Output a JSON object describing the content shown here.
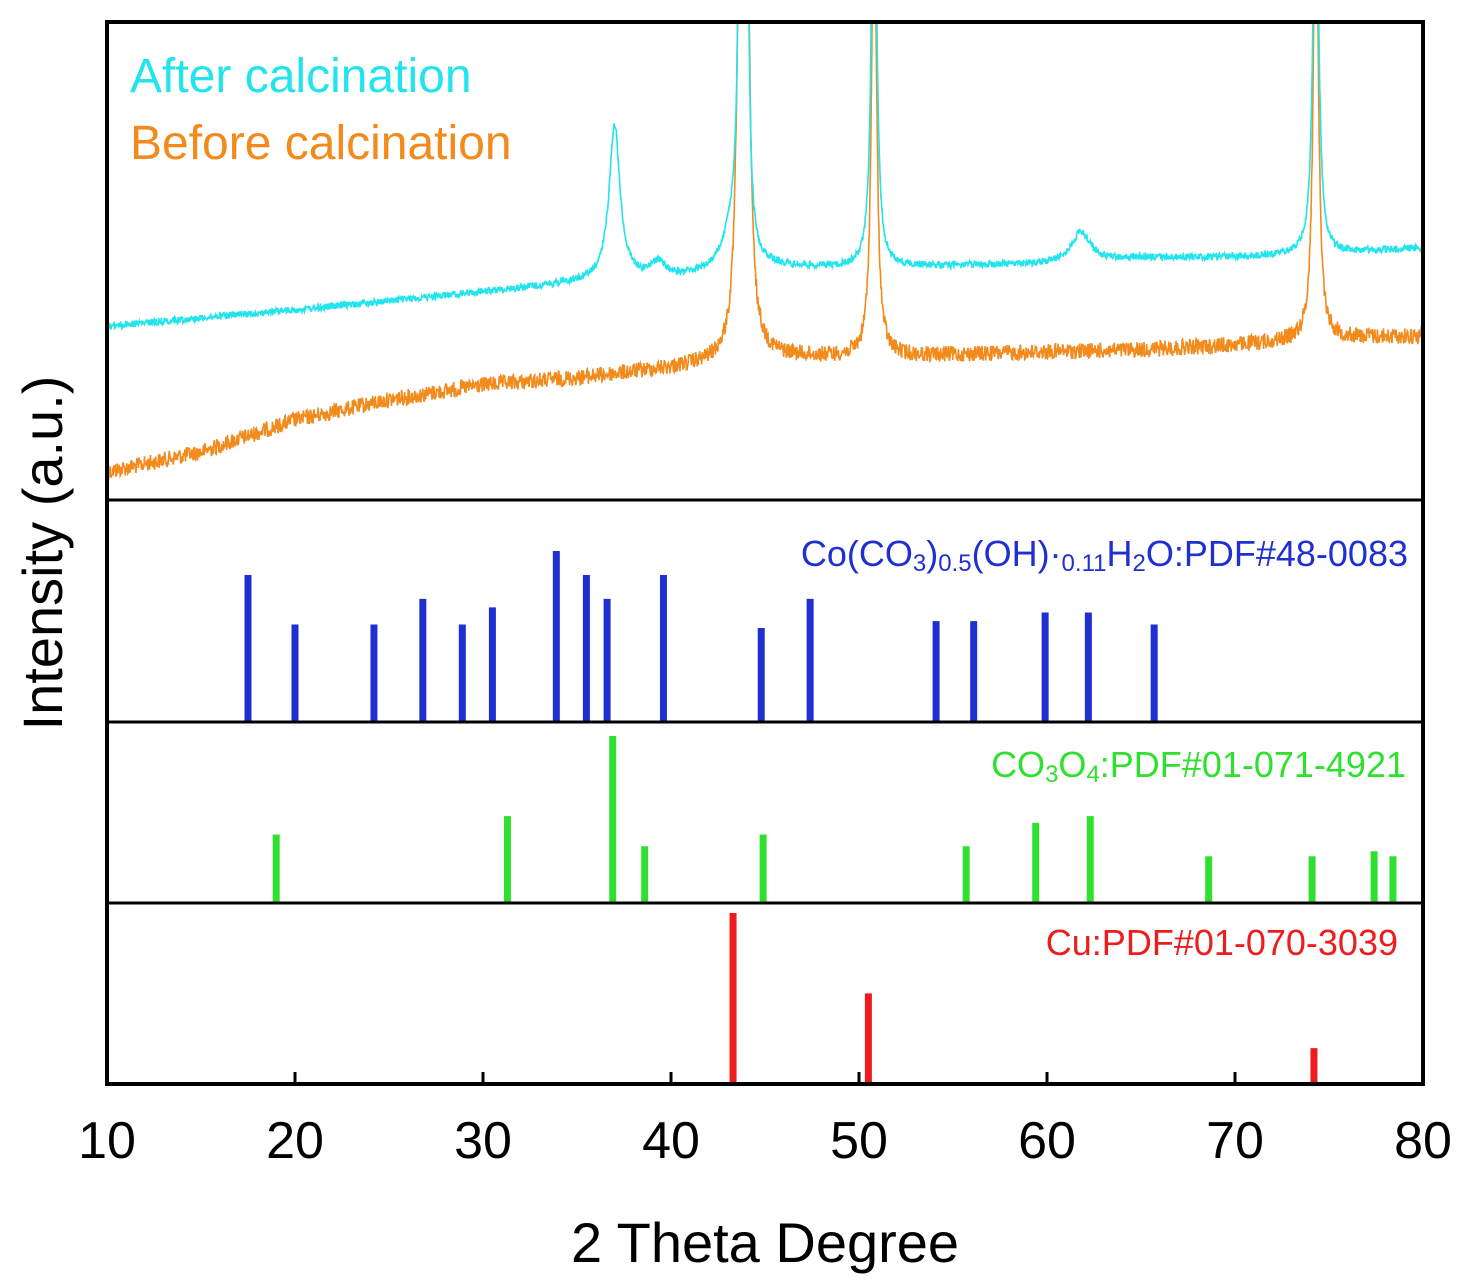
{
  "chart_data": {
    "type": "line",
    "xlabel": "2 Theta Degree",
    "ylabel": "Intensity (a.u.)",
    "xlim": [
      10,
      80
    ],
    "xticks": [
      10,
      20,
      30,
      40,
      50,
      60,
      70,
      80
    ],
    "grid": false,
    "legend": {
      "position": "top-left",
      "entries": [
        {
          "label": "After calcination",
          "color": "#22e4ec"
        },
        {
          "label": "Before calcination",
          "color": "#f28a1c"
        }
      ]
    },
    "series": [
      {
        "name": "After calcination",
        "color": "#22e4ec",
        "baseline": [
          [
            10,
            326
          ],
          [
            15,
            318
          ],
          [
            20,
            310
          ],
          [
            25,
            301
          ],
          [
            30,
            292
          ],
          [
            35,
            283
          ],
          [
            38,
            280
          ],
          [
            40,
            279
          ],
          [
            45,
            268
          ],
          [
            50,
            268
          ],
          [
            55,
            266
          ],
          [
            60,
            264
          ],
          [
            65,
            258
          ],
          [
            70,
            257
          ],
          [
            75,
            254
          ],
          [
            80,
            248
          ]
        ],
        "peaks": [
          {
            "x": 37.0,
            "height": 155,
            "width": 0.35
          },
          {
            "x": 39.3,
            "height": 15,
            "width": 0.5
          },
          {
            "x": 43.3,
            "height": 40,
            "width": 0.6
          },
          {
            "x": 43.7,
            "height": 500,
            "width": 0.12
          },
          {
            "x": 44.0,
            "height": 500,
            "width": 0.12
          },
          {
            "x": 50.8,
            "height": 500,
            "width": 0.15
          },
          {
            "x": 61.8,
            "height": 30,
            "width": 0.6
          },
          {
            "x": 74.3,
            "height": 500,
            "width": 0.15
          }
        ],
        "noise": 7
      },
      {
        "name": "Before calcination",
        "color": "#f28a1c",
        "baseline": [
          [
            10,
            472
          ],
          [
            15,
            452
          ],
          [
            20,
            420
          ],
          [
            25,
            400
          ],
          [
            30,
            385
          ],
          [
            35,
            378
          ],
          [
            40,
            368
          ],
          [
            45,
            357
          ],
          [
            50,
            357
          ],
          [
            55,
            355
          ],
          [
            60,
            352
          ],
          [
            65,
            350
          ],
          [
            70,
            345
          ],
          [
            75,
            338
          ],
          [
            80,
            336
          ]
        ],
        "peaks": [
          {
            "x": 43.7,
            "height": 500,
            "width": 0.18
          },
          {
            "x": 44.0,
            "height": 500,
            "width": 0.18
          },
          {
            "x": 50.8,
            "height": 500,
            "width": 0.15
          },
          {
            "x": 74.3,
            "height": 500,
            "width": 0.15
          }
        ],
        "noise": 16
      }
    ],
    "reference_patterns": [
      {
        "name": "Co(CO3)0.5(OH)·0.11H2O:PDF#48-0083",
        "label_parts": [
          "Co(CO",
          "3",
          ")",
          "0.5",
          "(OH)·",
          "0.11",
          "H",
          "2",
          "O:PDF#48-0083"
        ],
        "color": "#1f2fd0",
        "lines": [
          {
            "x": 17.5,
            "intensity": 0.86
          },
          {
            "x": 20.0,
            "intensity": 0.57
          },
          {
            "x": 24.2,
            "intensity": 0.57
          },
          {
            "x": 26.8,
            "intensity": 0.72
          },
          {
            "x": 28.9,
            "intensity": 0.57
          },
          {
            "x": 30.5,
            "intensity": 0.67
          },
          {
            "x": 33.9,
            "intensity": 1.0
          },
          {
            "x": 35.5,
            "intensity": 0.86
          },
          {
            "x": 36.6,
            "intensity": 0.72
          },
          {
            "x": 39.6,
            "intensity": 0.86
          },
          {
            "x": 44.8,
            "intensity": 0.55
          },
          {
            "x": 47.4,
            "intensity": 0.72
          },
          {
            "x": 54.1,
            "intensity": 0.59
          },
          {
            "x": 56.1,
            "intensity": 0.59
          },
          {
            "x": 59.9,
            "intensity": 0.64
          },
          {
            "x": 62.2,
            "intensity": 0.64
          },
          {
            "x": 65.7,
            "intensity": 0.57
          }
        ]
      },
      {
        "name": "CO3O4:PDF#01-071-4921",
        "label_parts": [
          "CO",
          "3",
          "O",
          "4",
          ":PDF#01-071-4921"
        ],
        "color": "#2fe02f",
        "lines": [
          {
            "x": 19.0,
            "intensity": 0.41
          },
          {
            "x": 31.3,
            "intensity": 0.52
          },
          {
            "x": 36.9,
            "intensity": 1.0
          },
          {
            "x": 38.6,
            "intensity": 0.34
          },
          {
            "x": 44.9,
            "intensity": 0.41
          },
          {
            "x": 55.7,
            "intensity": 0.34
          },
          {
            "x": 59.4,
            "intensity": 0.48
          },
          {
            "x": 62.3,
            "intensity": 0.52
          },
          {
            "x": 68.6,
            "intensity": 0.28
          },
          {
            "x": 74.1,
            "intensity": 0.28
          },
          {
            "x": 77.4,
            "intensity": 0.31
          },
          {
            "x": 78.4,
            "intensity": 0.28
          }
        ]
      },
      {
        "name": "Cu:PDF#01-070-3039",
        "label_parts": [
          "Cu:PDF#01-070-3039"
        ],
        "color": "#ee1c1c",
        "lines": [
          {
            "x": 43.3,
            "intensity": 1.0
          },
          {
            "x": 50.5,
            "intensity": 0.53
          },
          {
            "x": 74.2,
            "intensity": 0.21
          }
        ]
      }
    ]
  }
}
